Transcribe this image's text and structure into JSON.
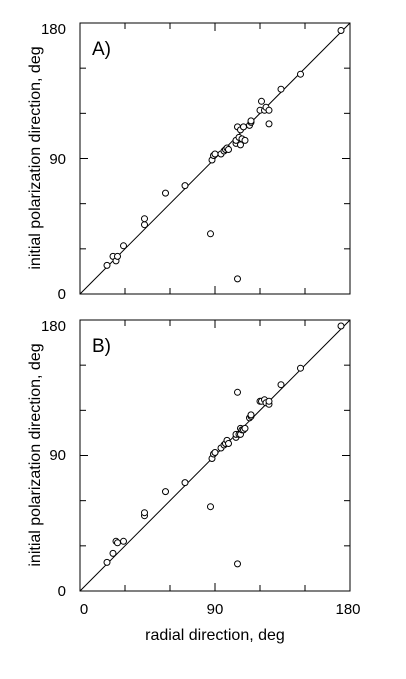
{
  "chart_data": [
    {
      "type": "scatter",
      "panel_label": "A)",
      "xlabel": "",
      "ylabel": "initial polarization direction, deg",
      "xlim": [
        0,
        180
      ],
      "ylim": [
        0,
        180
      ],
      "x_ticks": [],
      "y_ticks": [
        "0",
        "90",
        "180"
      ],
      "reference_line": "y = x",
      "grid": false,
      "points": [
        {
          "x": 18,
          "y": 19
        },
        {
          "x": 22,
          "y": 25
        },
        {
          "x": 24,
          "y": 22
        },
        {
          "x": 25,
          "y": 25
        },
        {
          "x": 29,
          "y": 32
        },
        {
          "x": 43,
          "y": 46
        },
        {
          "x": 43,
          "y": 50
        },
        {
          "x": 57,
          "y": 67
        },
        {
          "x": 70,
          "y": 72
        },
        {
          "x": 87,
          "y": 40
        },
        {
          "x": 88,
          "y": 89
        },
        {
          "x": 89,
          "y": 92
        },
        {
          "x": 90,
          "y": 93
        },
        {
          "x": 94,
          "y": 93
        },
        {
          "x": 96,
          "y": 95
        },
        {
          "x": 97,
          "y": 96
        },
        {
          "x": 98,
          "y": 97
        },
        {
          "x": 99,
          "y": 96
        },
        {
          "x": 104,
          "y": 100
        },
        {
          "x": 104,
          "y": 102
        },
        {
          "x": 105,
          "y": 111
        },
        {
          "x": 105,
          "y": 10
        },
        {
          "x": 106,
          "y": 104
        },
        {
          "x": 107,
          "y": 99
        },
        {
          "x": 107,
          "y": 109
        },
        {
          "x": 108,
          "y": 103
        },
        {
          "x": 109,
          "y": 111
        },
        {
          "x": 110,
          "y": 102
        },
        {
          "x": 113,
          "y": 112
        },
        {
          "x": 114,
          "y": 114
        },
        {
          "x": 114,
          "y": 115
        },
        {
          "x": 120,
          "y": 122
        },
        {
          "x": 121,
          "y": 128
        },
        {
          "x": 123,
          "y": 122
        },
        {
          "x": 124,
          "y": 124
        },
        {
          "x": 126,
          "y": 122
        },
        {
          "x": 126,
          "y": 113
        },
        {
          "x": 134,
          "y": 136
        },
        {
          "x": 147,
          "y": 146
        },
        {
          "x": 174,
          "y": 175
        }
      ]
    },
    {
      "type": "scatter",
      "panel_label": "B)",
      "xlabel": "radial direction, deg",
      "ylabel": "initial polarization direction, deg",
      "xlim": [
        0,
        180
      ],
      "ylim": [
        0,
        180
      ],
      "x_ticks": [
        "0",
        "90",
        "180"
      ],
      "y_ticks": [
        "0",
        "90",
        "180"
      ],
      "reference_line": "y = x",
      "grid": false,
      "points": [
        {
          "x": 18,
          "y": 19
        },
        {
          "x": 22,
          "y": 25
        },
        {
          "x": 24,
          "y": 33
        },
        {
          "x": 25,
          "y": 32
        },
        {
          "x": 29,
          "y": 33
        },
        {
          "x": 43,
          "y": 50
        },
        {
          "x": 43,
          "y": 52
        },
        {
          "x": 57,
          "y": 66
        },
        {
          "x": 70,
          "y": 72
        },
        {
          "x": 87,
          "y": 56
        },
        {
          "x": 88,
          "y": 88
        },
        {
          "x": 89,
          "y": 91
        },
        {
          "x": 90,
          "y": 92
        },
        {
          "x": 94,
          "y": 95
        },
        {
          "x": 96,
          "y": 97
        },
        {
          "x": 97,
          "y": 98
        },
        {
          "x": 98,
          "y": 100
        },
        {
          "x": 99,
          "y": 98
        },
        {
          "x": 104,
          "y": 102
        },
        {
          "x": 104,
          "y": 104
        },
        {
          "x": 105,
          "y": 132
        },
        {
          "x": 105,
          "y": 18
        },
        {
          "x": 106,
          "y": 104
        },
        {
          "x": 107,
          "y": 104
        },
        {
          "x": 107,
          "y": 108
        },
        {
          "x": 108,
          "y": 107
        },
        {
          "x": 109,
          "y": 107
        },
        {
          "x": 110,
          "y": 108
        },
        {
          "x": 113,
          "y": 115
        },
        {
          "x": 114,
          "y": 116
        },
        {
          "x": 114,
          "y": 117
        },
        {
          "x": 120,
          "y": 126
        },
        {
          "x": 121,
          "y": 126
        },
        {
          "x": 123,
          "y": 127
        },
        {
          "x": 124,
          "y": 125
        },
        {
          "x": 126,
          "y": 124
        },
        {
          "x": 126,
          "y": 126
        },
        {
          "x": 134,
          "y": 137
        },
        {
          "x": 147,
          "y": 148
        },
        {
          "x": 174,
          "y": 176
        }
      ]
    }
  ]
}
